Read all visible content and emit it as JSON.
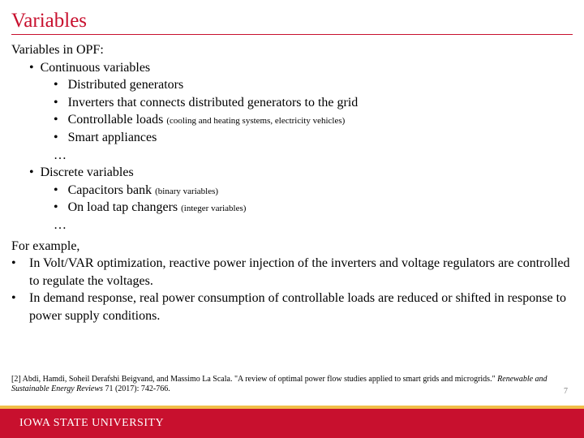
{
  "title": "Variables",
  "intro": "Variables in OPF:",
  "continuous": {
    "label": "Continuous variables",
    "items": [
      {
        "text": "Distributed generators",
        "note": ""
      },
      {
        "text": "Inverters that connects distributed generators to the grid",
        "note": ""
      },
      {
        "text": "Controllable loads",
        "note": "(cooling and heating systems, electricity vehicles)"
      },
      {
        "text": "Smart appliances",
        "note": ""
      }
    ],
    "ellipsis": "…"
  },
  "discrete": {
    "label": "Discrete variables",
    "items": [
      {
        "text": "Capacitors bank",
        "note": "(binary variables)"
      },
      {
        "text": "On load tap changers",
        "note": "(integer variables)"
      }
    ],
    "ellipsis": "…"
  },
  "example": {
    "lead": "For example,",
    "items": [
      "In Volt/VAR optimization, reactive power injection of the inverters and voltage regulators are controlled to regulate the voltages.",
      "In demand response, real power consumption of controllable loads are reduced or shifted in response to power supply conditions."
    ]
  },
  "citation": {
    "prefix": "[2] Abdi, Hamdi, Soheil Derafshi Beigvand, and Massimo La Scala. \"A review of optimal power flow studies applied to smart grids and microgrids.\" ",
    "italic": "Renewable and Sustainable Energy Reviews",
    "suffix": " 71 (2017): 742-766."
  },
  "page_number": "7",
  "footer": {
    "logo_text": "IOWA STATE UNIVERSITY"
  },
  "colors": {
    "accent": "#c8102e",
    "gold": "#f1be48",
    "text": "#000000",
    "muted": "#808080",
    "background": "#ffffff"
  }
}
